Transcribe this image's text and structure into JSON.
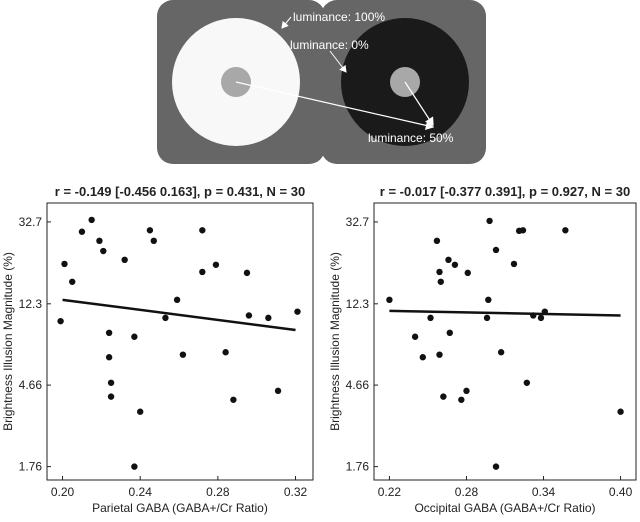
{
  "diagram": {
    "labels": [
      "luminance: 100%",
      "luminance: 0%",
      "luminance: 50%"
    ]
  },
  "chart_data": [
    {
      "type": "scatter",
      "title": "r = -0.149 [-0.456 0.163], p = 0.431, N = 30",
      "x_label": "Parietal GABA (GABA+/Cr Ratio)",
      "y_label": "Brightness Illusion Magnitude (%)",
      "y_scale": "log",
      "color": "#111111",
      "x": [
        0.199,
        0.201,
        0.205,
        0.21,
        0.215,
        0.219,
        0.221,
        0.224,
        0.224,
        0.225,
        0.225,
        0.232,
        0.237,
        0.24,
        0.237,
        0.245,
        0.247,
        0.253,
        0.259,
        0.262,
        0.272,
        0.272,
        0.279,
        0.284,
        0.288,
        0.295,
        0.296,
        0.306,
        0.311,
        0.321
      ],
      "values": [
        10.0,
        19.8,
        16.0,
        29.1,
        33.5,
        26.1,
        23.1,
        8.7,
        6.5,
        4.79,
        4.06,
        20.8,
        8.3,
        3.39,
        1.76,
        29.6,
        26.1,
        10.4,
        12.9,
        6.7,
        29.6,
        18.0,
        19.6,
        6.9,
        3.91,
        17.8,
        10.7,
        10.4,
        4.35,
        11.2
      ],
      "fit_x": [
        0.2,
        0.32
      ],
      "fit_values": [
        12.9,
        9.0
      ],
      "xlim": [
        0.192,
        0.329
      ],
      "ylim": [
        1.5,
        41
      ],
      "xticks": [
        {
          "value": 0.2,
          "label": "0.20"
        },
        0.24,
        0.28,
        0.32
      ],
      "yticks": [
        1.76,
        4.66,
        12.3,
        32.7
      ]
    },
    {
      "type": "scatter",
      "title": "r = -0.017 [-0.377 0.391], p = 0.927, N = 30",
      "x_label": "Occipital GABA (GABA+/Cr Ratio)",
      "y_label": "Brightness Illusion Magnitude (%)",
      "y_scale": "log",
      "color": "#111111",
      "x": [
        0.22,
        0.24,
        0.246,
        0.252,
        0.257,
        0.259,
        0.259,
        0.26,
        0.262,
        0.266,
        0.267,
        0.271,
        0.276,
        0.28,
        0.281,
        0.296,
        0.297,
        0.298,
        0.303,
        0.303,
        0.307,
        0.317,
        0.321,
        0.324,
        0.327,
        0.332,
        0.338,
        0.341,
        0.357,
        0.4
      ],
      "values": [
        12.9,
        8.3,
        6.5,
        10.4,
        26.1,
        18.0,
        6.7,
        16.0,
        4.06,
        20.8,
        8.7,
        19.6,
        3.91,
        4.35,
        17.8,
        10.4,
        12.9,
        33.1,
        23.4,
        1.76,
        6.9,
        19.8,
        29.4,
        29.6,
        4.79,
        10.7,
        10.4,
        11.2,
        29.6,
        3.39
      ],
      "fit_x": [
        0.22,
        0.4
      ],
      "fit_values": [
        11.3,
        10.7
      ],
      "xlim": [
        0.208,
        0.412
      ],
      "ylim": [
        1.5,
        41
      ],
      "xticks": [
        0.22,
        0.28,
        0.34,
        {
          "value": 0.4,
          "label": "0.40"
        }
      ],
      "yticks": [
        1.76,
        4.66,
        12.3,
        32.7
      ]
    }
  ]
}
